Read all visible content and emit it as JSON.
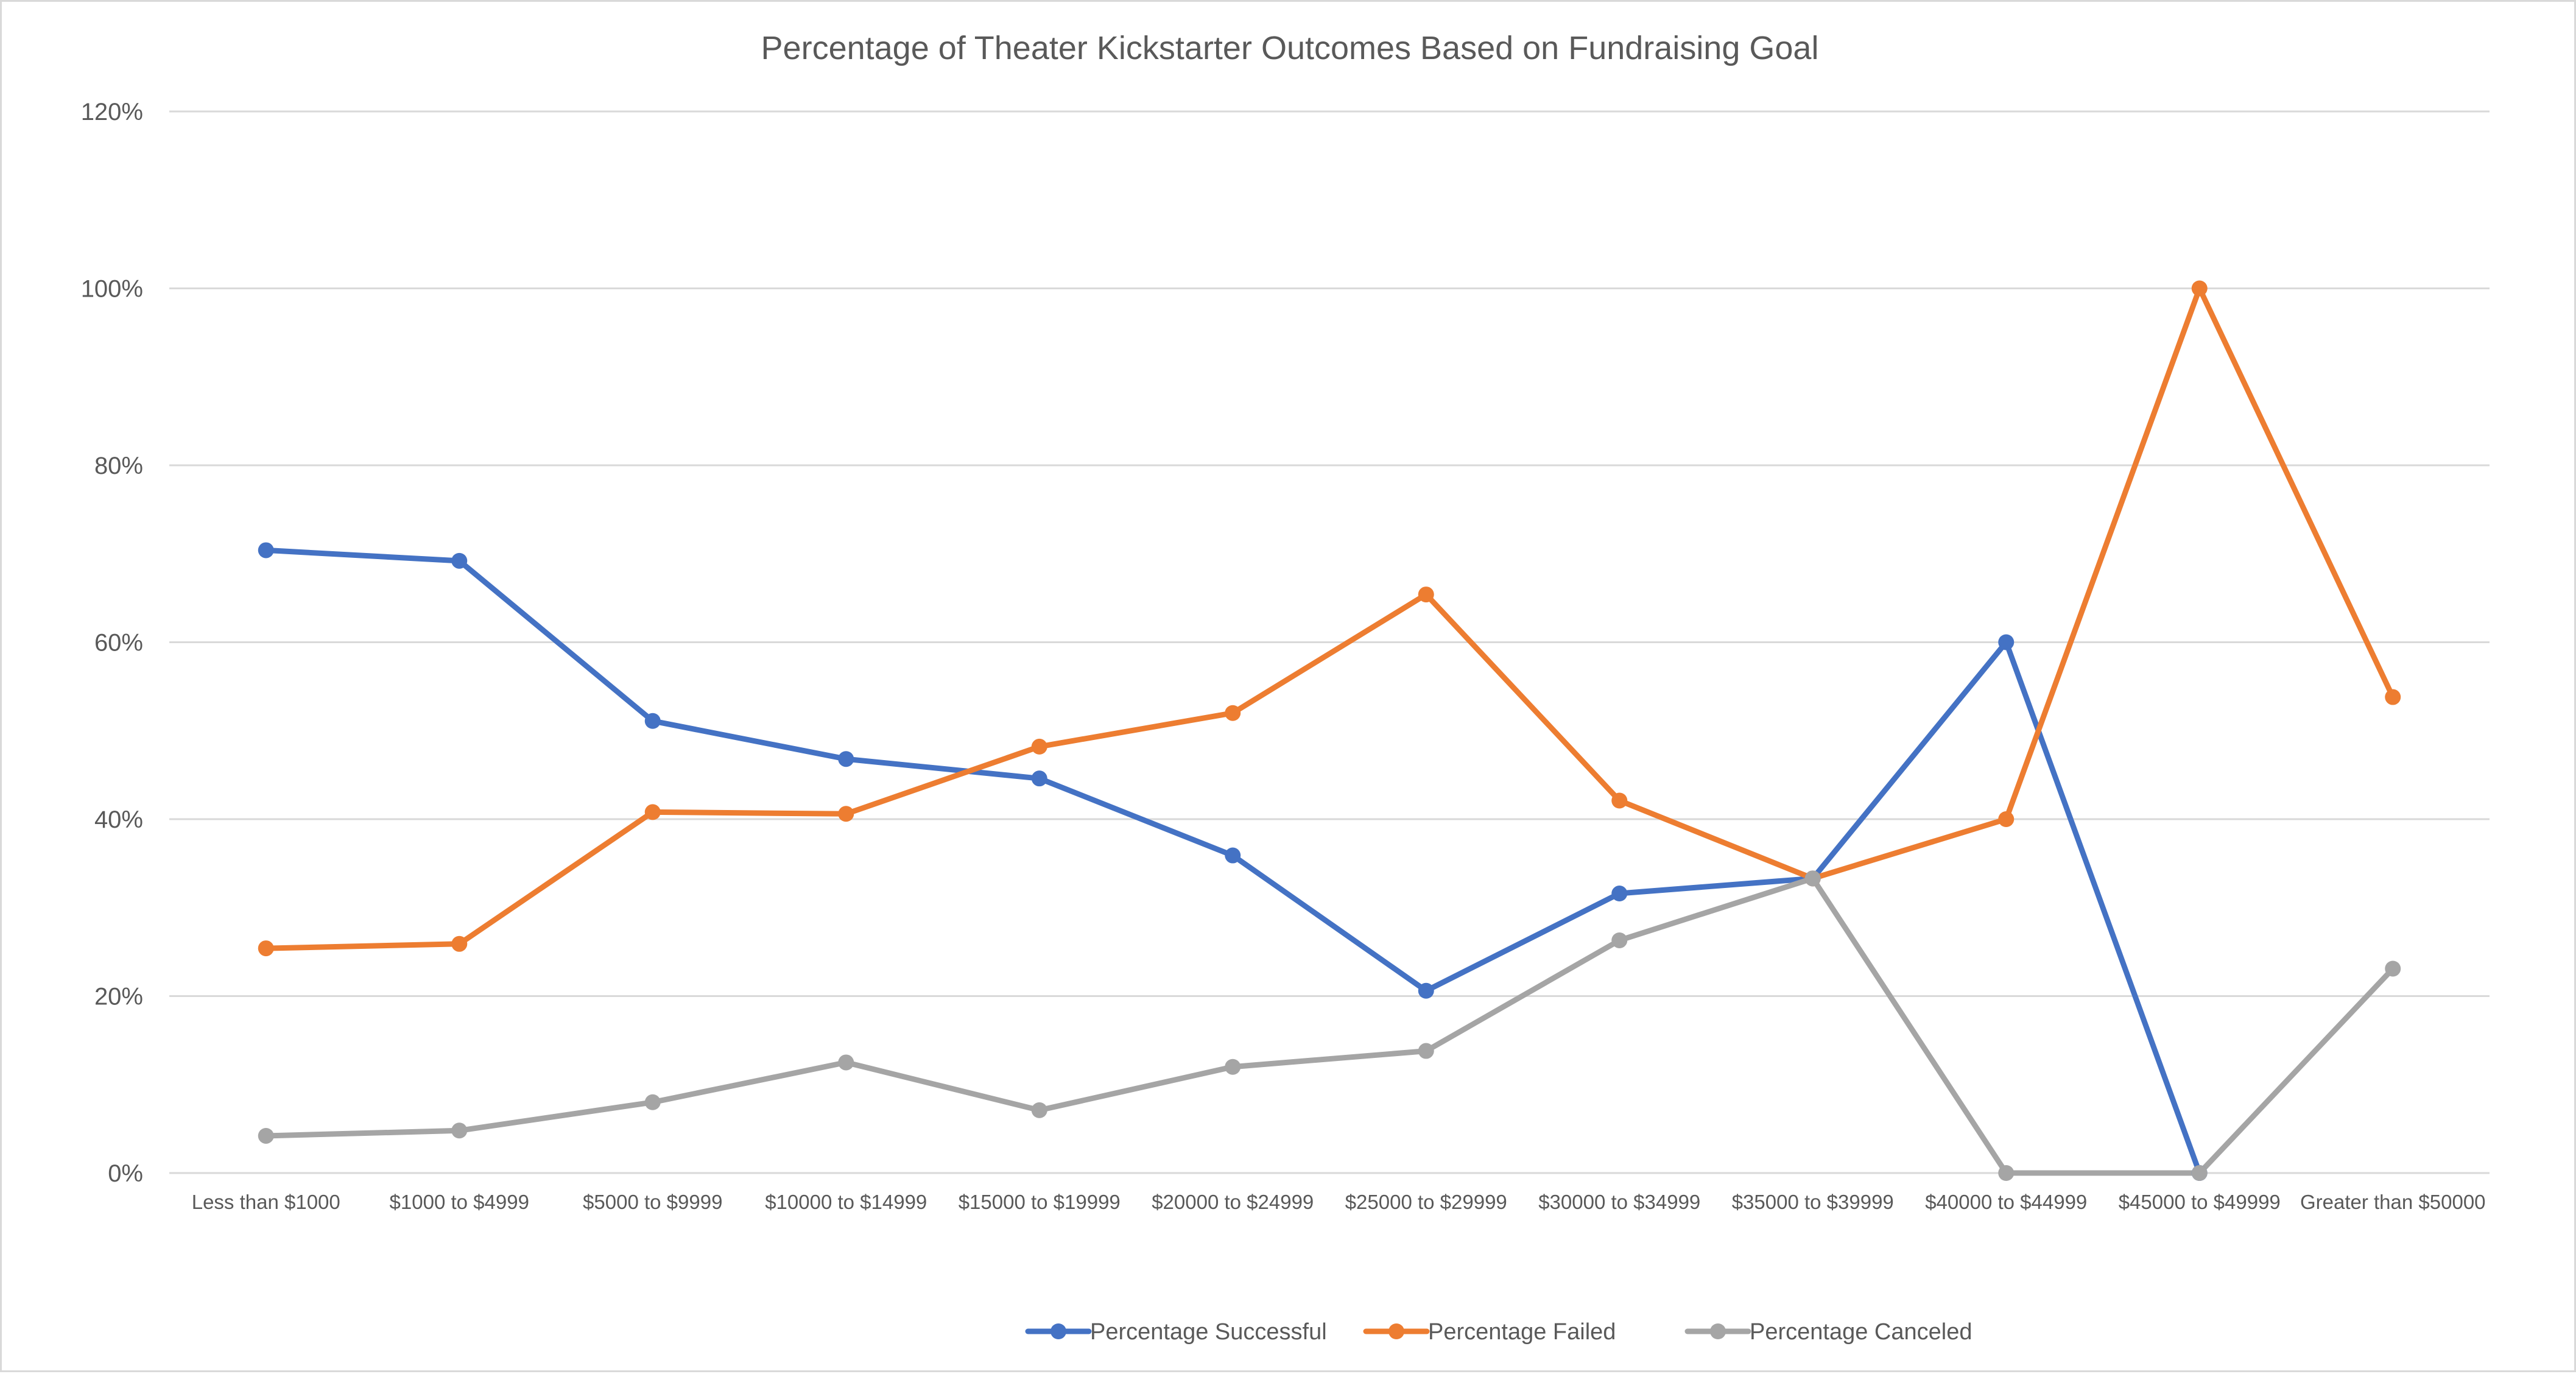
{
  "chart_data": {
    "type": "line",
    "title": "Percentage of Theater Kickstarter Outcomes Based on Fundraising Goal",
    "xlabel": "",
    "ylabel": "",
    "ylim": [
      0,
      120
    ],
    "yticks": [
      0,
      20,
      40,
      60,
      80,
      100,
      120
    ],
    "ytick_labels": [
      "0%",
      "20%",
      "40%",
      "60%",
      "80%",
      "100%",
      "120%"
    ],
    "grid": true,
    "legend_position": "bottom",
    "categories": [
      "Less than $1000",
      "$1000 to $4999",
      "$5000 to $9999",
      "$10000 to $14999",
      "$15000 to $19999",
      "$20000 to $24999",
      "$25000 to $29999",
      "$30000 to $34999",
      "$35000 to $39999",
      "$40000 to $44999",
      "$45000 to $49999",
      "Greater than $50000"
    ],
    "series": [
      {
        "name": "Percentage Successful",
        "color": "#4472c4",
        "values": [
          70.4,
          69.2,
          51.1,
          46.8,
          44.6,
          35.9,
          20.6,
          31.6,
          33.3,
          60.0,
          0,
          null
        ]
      },
      {
        "name": "Percentage Failed",
        "color": "#ed7d31",
        "values": [
          25.4,
          25.9,
          40.8,
          40.6,
          48.2,
          52.0,
          65.4,
          42.1,
          33.3,
          40.0,
          100.0,
          53.8
        ]
      },
      {
        "name": "Percentage Canceled",
        "color": "#a5a5a5",
        "values": [
          4.2,
          4.8,
          8.0,
          12.5,
          7.1,
          12.0,
          13.8,
          26.3,
          33.3,
          0,
          0,
          23.1
        ]
      }
    ]
  }
}
